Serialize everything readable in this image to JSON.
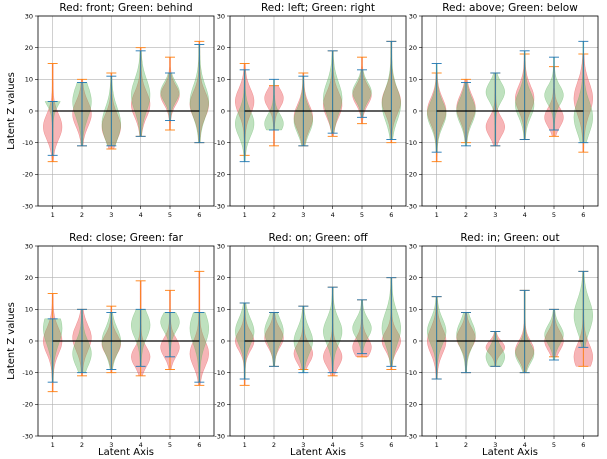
{
  "colors": {
    "red": "#e8474a",
    "green": "#5fb35f",
    "whisker_red": "#ff7f0e",
    "whisker_green": "#1f77b4",
    "zero_line": "#000000",
    "grid": "#b0b0b0"
  },
  "chart_data": [
    {
      "type": "violin",
      "title": "Red: front; Green: behind",
      "xlabel": "",
      "ylabel": "Latent Z values",
      "categories": [
        "1",
        "2",
        "3",
        "4",
        "5",
        "6"
      ],
      "ylim": [
        -30,
        30
      ],
      "yticks": [
        -30,
        -20,
        -10,
        0,
        10,
        20,
        30
      ],
      "grid": true,
      "series": [
        {
          "color": "red",
          "center": [
            -5,
            -1,
            -5,
            2,
            5,
            2
          ],
          "min": [
            -16,
            -11,
            -12,
            -8,
            -6,
            -10
          ],
          "max": [
            15,
            10,
            12,
            20,
            17,
            22
          ],
          "spread": [
            4,
            4,
            4,
            4,
            3,
            4
          ]
        },
        {
          "color": "green",
          "center": [
            5,
            3,
            -4,
            5,
            6,
            3
          ],
          "min": [
            -14,
            -11,
            -11,
            -8,
            -3,
            -10
          ],
          "max": [
            3,
            9,
            11,
            19,
            12,
            21
          ],
          "spread": [
            3,
            5,
            5,
            5,
            3,
            5
          ]
        }
      ]
    },
    {
      "type": "violin",
      "title": "Red: left; Green: right",
      "xlabel": "",
      "ylabel": "",
      "categories": [
        "1",
        "2",
        "3",
        "4",
        "5",
        "6"
      ],
      "ylim": [
        -30,
        30
      ],
      "yticks": [
        -30,
        -20,
        -10,
        0,
        10,
        20,
        30
      ],
      "grid": true,
      "series": [
        {
          "color": "red",
          "center": [
            3,
            4,
            -2,
            2,
            5,
            3
          ],
          "min": [
            -14,
            -11,
            -11,
            -8,
            -4,
            -10
          ],
          "max": [
            15,
            8,
            12,
            19,
            17,
            22
          ],
          "spread": [
            4,
            3,
            4,
            4,
            3,
            4
          ]
        },
        {
          "color": "green",
          "center": [
            -4,
            -4,
            -3,
            4,
            6,
            2
          ],
          "min": [
            -16,
            -6,
            -11,
            -7,
            -2,
            -9
          ],
          "max": [
            13,
            10,
            11,
            19,
            13,
            22
          ],
          "spread": [
            4,
            3,
            4,
            5,
            3,
            5
          ]
        }
      ]
    },
    {
      "type": "violin",
      "title": "Red: above; Green: below",
      "xlabel": "",
      "ylabel": "",
      "categories": [
        "1",
        "2",
        "3",
        "4",
        "5",
        "6"
      ],
      "ylim": [
        -30,
        30
      ],
      "yticks": [
        -30,
        -20,
        -10,
        0,
        10,
        20,
        30
      ],
      "grid": true,
      "series": [
        {
          "color": "red",
          "center": [
            0,
            1,
            -5,
            4,
            -2,
            4
          ],
          "min": [
            -16,
            -10,
            -11,
            -9,
            -8,
            -13
          ],
          "max": [
            12,
            10,
            12,
            18,
            14,
            18
          ],
          "spread": [
            4,
            4,
            3,
            4,
            3,
            5
          ]
        },
        {
          "color": "green",
          "center": [
            -1,
            0,
            6,
            2,
            5,
            -2
          ],
          "min": [
            -13,
            -11,
            -11,
            -9,
            -6,
            -10
          ],
          "max": [
            15,
            9,
            12,
            19,
            17,
            22
          ],
          "spread": [
            4,
            4,
            3,
            4,
            3,
            5
          ]
        }
      ]
    },
    {
      "type": "violin",
      "title": "Red: close; Green: far",
      "xlabel": "",
      "ylabel": "Latent Z values",
      "categories": [
        "1",
        "2",
        "3",
        "4",
        "5",
        "6"
      ],
      "ylim": [
        -30,
        30
      ],
      "yticks": [
        -30,
        -20,
        -10,
        0,
        10,
        20,
        30
      ],
      "grid": true,
      "series": [
        {
          "color": "red",
          "center": [
            0,
            1,
            -1,
            -5,
            -2,
            -4
          ],
          "min": [
            -16,
            -11,
            -10,
            -11,
            -9,
            -14
          ],
          "max": [
            15,
            10,
            11,
            19,
            16,
            22
          ],
          "spread": [
            4,
            4,
            3,
            3,
            3,
            4
          ]
        },
        {
          "color": "green",
          "center": [
            4,
            -4,
            0,
            5,
            6,
            4
          ],
          "min": [
            -13,
            -10,
            -9,
            -8,
            -5,
            -13
          ],
          "max": [
            7,
            10,
            9,
            10,
            9,
            9
          ],
          "spread": [
            5,
            4,
            4,
            4,
            3,
            5
          ]
        }
      ]
    },
    {
      "type": "violin",
      "title": "Red: on; Green: off",
      "xlabel": "Latent Axis",
      "ylabel": "",
      "categories": [
        "1",
        "2",
        "3",
        "4",
        "5",
        "6"
      ],
      "ylim": [
        -30,
        30
      ],
      "yticks": [
        -30,
        -20,
        -10,
        0,
        10,
        20,
        30
      ],
      "grid": true,
      "series": [
        {
          "color": "red",
          "center": [
            0,
            1,
            -4,
            -5,
            -2,
            0
          ],
          "min": [
            -14,
            -8,
            -9,
            -11,
            -5,
            -9
          ],
          "max": [
            12,
            9,
            11,
            17,
            13,
            20
          ],
          "spread": [
            3,
            3,
            3,
            3,
            3,
            3
          ]
        },
        {
          "color": "green",
          "center": [
            3,
            3,
            0,
            3,
            4,
            4
          ],
          "min": [
            -12,
            -8,
            -10,
            -10,
            -4,
            -8
          ],
          "max": [
            12,
            9,
            11,
            17,
            13,
            20
          ],
          "spread": [
            4,
            4,
            4,
            4,
            3,
            5
          ]
        }
      ]
    },
    {
      "type": "violin",
      "title": "Red: in; Green: out",
      "xlabel": "",
      "ylabel": "",
      "categories": [
        "1",
        "2",
        "3",
        "4",
        "5",
        "6"
      ],
      "ylim": [
        -30,
        30
      ],
      "yticks": [
        -30,
        -20,
        -10,
        0,
        10,
        20,
        30
      ],
      "grid": true,
      "series": [
        {
          "color": "red",
          "center": [
            0,
            1,
            -2,
            -3,
            0,
            -5
          ],
          "min": [
            -12,
            -10,
            -8,
            -10,
            -5,
            -8
          ],
          "max": [
            14,
            9,
            3,
            16,
            10,
            22
          ],
          "spread": [
            4,
            3,
            2,
            3,
            3,
            4
          ]
        },
        {
          "color": "green",
          "center": [
            3,
            2,
            -5,
            -4,
            2,
            8
          ],
          "min": [
            -12,
            -10,
            -8,
            -10,
            -6,
            -2
          ],
          "max": [
            14,
            9,
            3,
            16,
            10,
            22
          ],
          "spread": [
            4,
            4,
            3,
            3,
            3,
            5
          ]
        }
      ]
    }
  ]
}
